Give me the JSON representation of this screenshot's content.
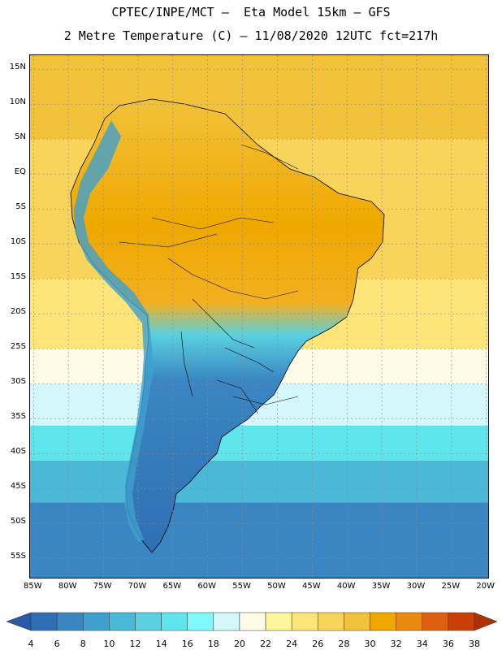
{
  "header": {
    "line1": "CPTEC/INPE/MCT –  Eta Model 15km – GFS",
    "line2": "2 Metre Temperature (C) – 11/08/2020 12UTC fct=217h"
  },
  "map": {
    "lat_ticks": [
      "15N",
      "10N",
      "5N",
      "EQ",
      "5S",
      "10S",
      "15S",
      "20S",
      "25S",
      "30S",
      "35S",
      "40S",
      "45S",
      "50S",
      "55S"
    ],
    "lon_ticks": [
      "85W",
      "80W",
      "75W",
      "70W",
      "65W",
      "60W",
      "55W",
      "50W",
      "45W",
      "40W",
      "35W",
      "30W",
      "25W",
      "20W"
    ],
    "extent": {
      "lon_min": -85.5,
      "lon_max": -19.5,
      "lat_min": -58,
      "lat_max": 17
    },
    "ocean_bands": [
      {
        "lat_top": 17,
        "lat_bottom": 5,
        "temp": 28
      },
      {
        "lat_top": 5,
        "lat_bottom": -15,
        "temp": 26
      },
      {
        "lat_top": -15,
        "lat_bottom": -25,
        "temp": 24
      },
      {
        "lat_top": -25,
        "lat_bottom": -30,
        "temp": 20
      },
      {
        "lat_top": -30,
        "lat_bottom": -36,
        "temp": 18
      },
      {
        "lat_top": -36,
        "lat_bottom": -41,
        "temp": 14
      },
      {
        "lat_top": -41,
        "lat_bottom": -47,
        "temp": 10
      },
      {
        "lat_top": -47,
        "lat_bottom": -58,
        "temp": 6
      }
    ]
  },
  "colorbar": {
    "levels": [
      "4",
      "6",
      "8",
      "10",
      "12",
      "14",
      "16",
      "18",
      "20",
      "22",
      "24",
      "26",
      "28",
      "30",
      "32",
      "34",
      "36",
      "38"
    ],
    "colors": [
      "#2a5aa6",
      "#2f6fb4",
      "#3a86c2",
      "#3fa0cf",
      "#4cb8d8",
      "#5ad0e0",
      "#5fe6ec",
      "#7ff9fb",
      "#d3f7fa",
      "#fffbe6",
      "#fff59a",
      "#fde57a",
      "#f8d55a",
      "#f2c23a",
      "#f0a800",
      "#e88a10",
      "#dc6010",
      "#c84008",
      "#b03006"
    ]
  }
}
